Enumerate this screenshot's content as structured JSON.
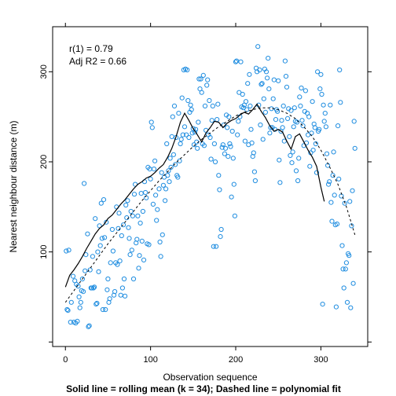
{
  "chart_data": {
    "type": "scatter",
    "xlabel": "Observation sequence",
    "ylabel": "Nearest neighbour distance (m)",
    "caption": "Solid line = rolling mean (k = 34); Dashed line = polynomial fit",
    "annotations": [
      "r(1) = 0.79",
      "Adj R2 = 0.66"
    ],
    "xlim": [
      -15,
      355
    ],
    "ylim": [
      -5,
      350
    ],
    "x_ticks": [
      0,
      100,
      200,
      300
    ],
    "y_ticks": [
      100,
      200,
      300
    ],
    "grid": false,
    "colors": {
      "points": "#1f8de0",
      "lines": "#000000"
    },
    "points": [
      [
        1,
        101
      ],
      [
        2,
        36
      ],
      [
        3,
        35
      ],
      [
        4,
        102
      ],
      [
        6,
        22
      ],
      [
        7,
        44
      ],
      [
        9,
        73
      ],
      [
        10,
        22
      ],
      [
        11,
        68
      ],
      [
        12,
        21
      ],
      [
        13,
        64
      ],
      [
        14,
        23
      ],
      [
        15,
        62
      ],
      [
        16,
        50
      ],
      [
        17,
        38
      ],
      [
        18,
        44
      ],
      [
        19,
        57
      ],
      [
        20,
        70
      ],
      [
        21,
        56
      ],
      [
        22,
        176
      ],
      [
        23,
        79
      ],
      [
        24,
        97
      ],
      [
        26,
        120
      ],
      [
        27,
        17
      ],
      [
        28,
        18
      ],
      [
        29,
        80
      ],
      [
        30,
        60
      ],
      [
        31,
        60
      ],
      [
        32,
        95
      ],
      [
        33,
        60
      ],
      [
        34,
        61
      ],
      [
        35,
        137
      ],
      [
        36,
        42
      ],
      [
        37,
        43
      ],
      [
        38,
        100
      ],
      [
        39,
        78
      ],
      [
        40,
        129
      ],
      [
        41,
        107
      ],
      [
        42,
        154
      ],
      [
        43,
        115
      ],
      [
        44,
        36
      ],
      [
        45,
        158
      ],
      [
        46,
        116
      ],
      [
        47,
        36
      ],
      [
        48,
        133
      ],
      [
        49,
        58
      ],
      [
        50,
        70
      ],
      [
        51,
        44
      ],
      [
        52,
        48
      ],
      [
        53,
        88
      ],
      [
        55,
        125
      ],
      [
        56,
        101
      ],
      [
        57,
        52
      ],
      [
        58,
        56
      ],
      [
        59,
        88
      ],
      [
        60,
        150
      ],
      [
        61,
        86
      ],
      [
        62,
        126
      ],
      [
        63,
        143
      ],
      [
        64,
        90
      ],
      [
        65,
        52
      ],
      [
        66,
        118
      ],
      [
        67,
        60
      ],
      [
        68,
        130
      ],
      [
        69,
        70
      ],
      [
        70,
        51
      ],
      [
        71,
        152
      ],
      [
        72,
        138
      ],
      [
        73,
        157
      ],
      [
        74,
        127
      ],
      [
        75,
        115
      ],
      [
        76,
        97
      ],
      [
        77,
        145
      ],
      [
        78,
        102
      ],
      [
        79,
        140
      ],
      [
        80,
        70
      ],
      [
        81,
        164
      ],
      [
        82,
        175
      ],
      [
        83,
        110
      ],
      [
        84,
        114
      ],
      [
        85,
        140
      ],
      [
        86,
        82
      ],
      [
        87,
        96
      ],
      [
        88,
        132
      ],
      [
        89,
        165
      ],
      [
        90,
        112
      ],
      [
        91,
        145
      ],
      [
        92,
        91
      ],
      [
        93,
        178
      ],
      [
        94,
        166
      ],
      [
        95,
        160
      ],
      [
        96,
        109
      ],
      [
        97,
        194
      ],
      [
        98,
        108
      ],
      [
        99,
        192
      ],
      [
        100,
        181
      ],
      [
        101,
        244
      ],
      [
        102,
        238
      ],
      [
        103,
        153
      ],
      [
        104,
        192
      ],
      [
        105,
        201
      ],
      [
        106,
        163
      ],
      [
        107,
        135
      ],
      [
        108,
        147
      ],
      [
        110,
        170
      ],
      [
        111,
        111
      ],
      [
        112,
        95
      ],
      [
        113,
        188
      ],
      [
        114,
        119
      ],
      [
        115,
        174
      ],
      [
        116,
        183
      ],
      [
        117,
        157
      ],
      [
        118,
        170
      ],
      [
        119,
        220
      ],
      [
        120,
        185
      ],
      [
        121,
        190
      ],
      [
        122,
        178
      ],
      [
        123,
        204
      ],
      [
        124,
        194
      ],
      [
        125,
        228
      ],
      [
        126,
        250
      ],
      [
        127,
        208
      ],
      [
        128,
        262
      ],
      [
        129,
        197
      ],
      [
        130,
        227
      ],
      [
        131,
        185
      ],
      [
        132,
        183
      ],
      [
        133,
        254
      ],
      [
        134,
        201
      ],
      [
        135,
        220
      ],
      [
        136,
        225
      ],
      [
        137,
        271
      ],
      [
        138,
        230
      ],
      [
        139,
        302
      ],
      [
        140,
        239
      ],
      [
        141,
        303
      ],
      [
        142,
        230
      ],
      [
        143,
        302
      ],
      [
        144,
        268
      ],
      [
        145,
        227
      ],
      [
        146,
        255
      ],
      [
        147,
        263
      ],
      [
        148,
        258
      ],
      [
        149,
        232
      ],
      [
        150,
        237
      ],
      [
        151,
        219
      ],
      [
        152,
        233
      ],
      [
        153,
        236
      ],
      [
        154,
        222
      ],
      [
        155,
        215
      ],
      [
        156,
        244
      ],
      [
        157,
        292
      ],
      [
        158,
        281
      ],
      [
        159,
        292
      ],
      [
        160,
        277
      ],
      [
        161,
        220
      ],
      [
        162,
        296
      ],
      [
        163,
        218
      ],
      [
        164,
        262
      ],
      [
        165,
        235
      ],
      [
        166,
        285
      ],
      [
        167,
        291
      ],
      [
        168,
        230
      ],
      [
        169,
        268
      ],
      [
        170,
        227
      ],
      [
        171,
        203
      ],
      [
        172,
        246
      ],
      [
        173,
        262
      ],
      [
        174,
        106
      ],
      [
        175,
        220
      ],
      [
        176,
        200
      ],
      [
        177,
        106
      ],
      [
        178,
        247
      ],
      [
        179,
        264
      ],
      [
        180,
        185
      ],
      [
        181,
        169
      ],
      [
        182,
        117
      ],
      [
        183,
        125
      ],
      [
        184,
        216
      ],
      [
        185,
        219
      ],
      [
        186,
        241
      ],
      [
        187,
        209
      ],
      [
        188,
        215
      ],
      [
        189,
        252
      ],
      [
        190,
        238
      ],
      [
        191,
        206
      ],
      [
        192,
        250
      ],
      [
        193,
        220
      ],
      [
        194,
        217
      ],
      [
        195,
        161
      ],
      [
        196,
        234
      ],
      [
        197,
        204
      ],
      [
        198,
        175
      ],
      [
        199,
        140
      ],
      [
        200,
        311
      ],
      [
        201,
        312
      ],
      [
        202,
        230
      ],
      [
        203,
        245
      ],
      [
        204,
        277
      ],
      [
        205,
        250
      ],
      [
        206,
        311
      ],
      [
        207,
        261
      ],
      [
        208,
        275
      ],
      [
        209,
        260
      ],
      [
        210,
        263
      ],
      [
        211,
        223
      ],
      [
        212,
        267
      ],
      [
        213,
        258
      ],
      [
        214,
        287
      ],
      [
        215,
        219
      ],
      [
        216,
        297
      ],
      [
        217,
        262
      ],
      [
        218,
        236
      ],
      [
        219,
        221
      ],
      [
        220,
        206
      ],
      [
        221,
        210
      ],
      [
        222,
        189
      ],
      [
        223,
        179
      ],
      [
        224,
        304
      ],
      [
        225,
        300
      ],
      [
        226,
        328
      ],
      [
        227,
        263
      ],
      [
        228,
        302
      ],
      [
        229,
        241
      ],
      [
        230,
        286
      ],
      [
        231,
        287
      ],
      [
        232,
        225
      ],
      [
        233,
        270
      ],
      [
        234,
        303
      ],
      [
        235,
        255
      ],
      [
        236,
        300
      ],
      [
        237,
        293
      ],
      [
        238,
        315
      ],
      [
        239,
        281
      ],
      [
        240,
        232
      ],
      [
        241,
        238
      ],
      [
        242,
        259
      ],
      [
        243,
        238
      ],
      [
        244,
        270
      ],
      [
        245,
        291
      ],
      [
        246,
        236
      ],
      [
        247,
        247
      ],
      [
        248,
        258
      ],
      [
        249,
        256
      ],
      [
        250,
        290
      ],
      [
        251,
        202
      ],
      [
        252,
        177
      ],
      [
        253,
        234
      ],
      [
        254,
        246
      ],
      [
        255,
        238
      ],
      [
        256,
        262
      ],
      [
        257,
        223
      ],
      [
        258,
        312
      ],
      [
        259,
        295
      ],
      [
        260,
        283
      ],
      [
        261,
        248
      ],
      [
        262,
        259
      ],
      [
        263,
        228
      ],
      [
        264,
        207
      ],
      [
        265,
        257
      ],
      [
        266,
        199
      ],
      [
        267,
        211
      ],
      [
        268,
        239
      ],
      [
        269,
        260
      ],
      [
        270,
        245
      ],
      [
        271,
        190
      ],
      [
        272,
        244
      ],
      [
        273,
        179
      ],
      [
        274,
        204
      ],
      [
        275,
        272
      ],
      [
        276,
        262
      ],
      [
        277,
        282
      ],
      [
        278,
        246
      ],
      [
        279,
        240
      ],
      [
        280,
        218
      ],
      [
        281,
        256
      ],
      [
        282,
        279
      ],
      [
        283,
        221
      ],
      [
        284,
        254
      ],
      [
        285,
        230
      ],
      [
        286,
        250
      ],
      [
        287,
        195
      ],
      [
        288,
        210
      ],
      [
        289,
        232
      ],
      [
        290,
        267
      ],
      [
        291,
        213
      ],
      [
        292,
        242
      ],
      [
        293,
        238
      ],
      [
        294,
        220
      ],
      [
        295,
        188
      ],
      [
        296,
        300
      ],
      [
        297,
        234
      ],
      [
        298,
        236
      ],
      [
        299,
        281
      ],
      [
        300,
        297
      ],
      [
        301,
        275
      ],
      [
        302,
        42
      ],
      [
        303,
        263
      ],
      [
        304,
        245
      ],
      [
        305,
        254
      ],
      [
        306,
        239
      ],
      [
        307,
        209
      ],
      [
        308,
        196
      ],
      [
        309,
        175
      ],
      [
        310,
        178
      ],
      [
        311,
        263
      ],
      [
        312,
        155
      ],
      [
        313,
        134
      ],
      [
        314,
        185
      ],
      [
        315,
        211
      ],
      [
        316,
        163
      ],
      [
        317,
        130
      ],
      [
        318,
        39
      ],
      [
        319,
        131
      ],
      [
        320,
        240
      ],
      [
        321,
        181
      ],
      [
        322,
        302
      ],
      [
        323,
        266
      ],
      [
        324,
        162
      ],
      [
        325,
        107
      ],
      [
        326,
        81
      ],
      [
        327,
        60
      ],
      [
        328,
        154
      ],
      [
        329,
        81
      ],
      [
        330,
        88
      ],
      [
        331,
        44
      ],
      [
        332,
        98
      ],
      [
        333,
        96
      ],
      [
        334,
        156
      ],
      [
        335,
        38
      ],
      [
        336,
        129
      ],
      [
        337,
        168
      ],
      [
        338,
        65
      ],
      [
        339,
        245
      ],
      [
        340,
        215
      ]
    ],
    "rolling_mean": [
      [
        0,
        61
      ],
      [
        5,
        74
      ],
      [
        10,
        80
      ],
      [
        15,
        87
      ],
      [
        20,
        95
      ],
      [
        25,
        104
      ],
      [
        30,
        112
      ],
      [
        35,
        120
      ],
      [
        40,
        126
      ],
      [
        45,
        130
      ],
      [
        50,
        137
      ],
      [
        55,
        141
      ],
      [
        60,
        147
      ],
      [
        65,
        153
      ],
      [
        70,
        158
      ],
      [
        75,
        164
      ],
      [
        80,
        170
      ],
      [
        85,
        175
      ],
      [
        90,
        178
      ],
      [
        95,
        182
      ],
      [
        100,
        184
      ],
      [
        105,
        188
      ],
      [
        110,
        193
      ],
      [
        115,
        197
      ],
      [
        120,
        205
      ],
      [
        125,
        215
      ],
      [
        130,
        228
      ],
      [
        135,
        244
      ],
      [
        140,
        254
      ],
      [
        145,
        246
      ],
      [
        150,
        237
      ],
      [
        155,
        230
      ],
      [
        160,
        222
      ],
      [
        165,
        232
      ],
      [
        170,
        238
      ],
      [
        175,
        245
      ],
      [
        180,
        244
      ],
      [
        185,
        238
      ],
      [
        190,
        243
      ],
      [
        195,
        246
      ],
      [
        200,
        248
      ],
      [
        205,
        252
      ],
      [
        210,
        255
      ],
      [
        215,
        253
      ],
      [
        220,
        258
      ],
      [
        225,
        264
      ],
      [
        230,
        256
      ],
      [
        235,
        249
      ],
      [
        240,
        240
      ],
      [
        245,
        234
      ],
      [
        250,
        236
      ],
      [
        255,
        233
      ],
      [
        260,
        223
      ],
      [
        265,
        214
      ],
      [
        270,
        228
      ],
      [
        275,
        231
      ],
      [
        280,
        222
      ],
      [
        285,
        213
      ],
      [
        290,
        205
      ],
      [
        295,
        195
      ],
      [
        300,
        172
      ],
      [
        304,
        156
      ]
    ],
    "poly_fit": [
      [
        0,
        44
      ],
      [
        10,
        57
      ],
      [
        20,
        70
      ],
      [
        30,
        83
      ],
      [
        40,
        96
      ],
      [
        50,
        109
      ],
      [
        60,
        121
      ],
      [
        70,
        133
      ],
      [
        80,
        145
      ],
      [
        90,
        157
      ],
      [
        100,
        168
      ],
      [
        110,
        179
      ],
      [
        120,
        189
      ],
      [
        130,
        199
      ],
      [
        140,
        208
      ],
      [
        150,
        217
      ],
      [
        160,
        225
      ],
      [
        170,
        232
      ],
      [
        180,
        239
      ],
      [
        190,
        245
      ],
      [
        200,
        251
      ],
      [
        210,
        255
      ],
      [
        220,
        258
      ],
      [
        230,
        260
      ],
      [
        240,
        260
      ],
      [
        250,
        258
      ],
      [
        260,
        254
      ],
      [
        270,
        248
      ],
      [
        280,
        239
      ],
      [
        290,
        228
      ],
      [
        300,
        213
      ],
      [
        310,
        195
      ],
      [
        320,
        175
      ],
      [
        330,
        150
      ],
      [
        340,
        119
      ]
    ]
  }
}
